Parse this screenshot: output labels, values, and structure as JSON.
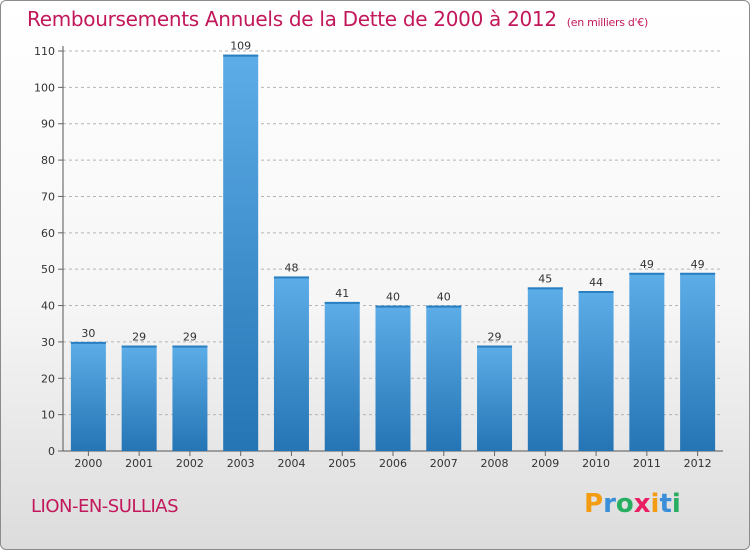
{
  "title": "Remboursements Annuels de la Dette de 2000 à 2012",
  "title_unit": "(en milliers d'€)",
  "place_name": "LION-EN-SULLIAS",
  "logo": {
    "letters": [
      "P",
      "r",
      "o",
      "x",
      "i",
      "t",
      "i"
    ],
    "colors": [
      "#f39c12",
      "#3a8fd8",
      "#27ae60",
      "#e91e63",
      "#f39c12",
      "#3a8fd8",
      "#27ae60"
    ]
  },
  "colors": {
    "title": "#c2185b",
    "bar_top": "#5dade8",
    "bar_bottom": "#2574b4"
  },
  "chart_data": {
    "type": "bar",
    "categories": [
      "2000",
      "2001",
      "2002",
      "2003",
      "2004",
      "2005",
      "2006",
      "2007",
      "2008",
      "2009",
      "2010",
      "2011",
      "2012"
    ],
    "values": [
      30,
      29,
      29,
      109,
      48,
      41,
      40,
      40,
      29,
      45,
      44,
      49,
      49
    ],
    "data_labels": [
      "30",
      "29",
      "29",
      "109",
      "48",
      "41",
      "40",
      "40",
      "29",
      "45",
      "44",
      "49",
      "49"
    ],
    "yticks": [
      0,
      10,
      20,
      30,
      40,
      50,
      60,
      70,
      80,
      90,
      100,
      110
    ],
    "ylim": [
      0,
      110
    ],
    "grid": true
  }
}
